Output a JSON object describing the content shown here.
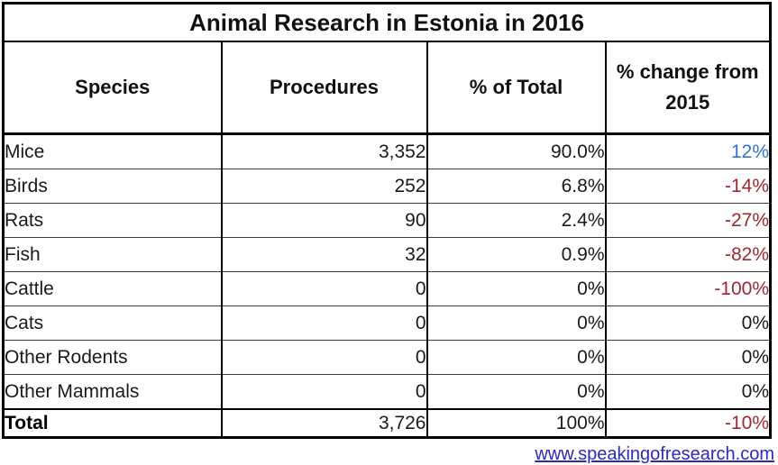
{
  "title": "Animal Research in Estonia in 2016",
  "table": {
    "columns": [
      "Species",
      "Procedures",
      "% of Total",
      "% change from 2015"
    ],
    "rows": [
      {
        "species": "Mice",
        "procedures": "3,352",
        "pct_total": "90.0%",
        "change": "12%",
        "change_color": "#2d73dc"
      },
      {
        "species": "Birds",
        "procedures": "252",
        "pct_total": "6.8%",
        "change": "-14%",
        "change_color": "#a4262e"
      },
      {
        "species": "Rats",
        "procedures": "90",
        "pct_total": "2.4%",
        "change": "-27%",
        "change_color": "#a4262e"
      },
      {
        "species": "Fish",
        "procedures": "32",
        "pct_total": "0.9%",
        "change": "-82%",
        "change_color": "#a4262e"
      },
      {
        "species": "Cattle",
        "procedures": "0",
        "pct_total": "0%",
        "change": "-100%",
        "change_color": "#a4262e"
      },
      {
        "species": "Cats",
        "procedures": "0",
        "pct_total": "0%",
        "change": "0%",
        "change_color": "#1a1a1a"
      },
      {
        "species": "Other Rodents",
        "procedures": "0",
        "pct_total": "0%",
        "change": "0%",
        "change_color": "#1a1a1a"
      },
      {
        "species": "Other Mammals",
        "procedures": "0",
        "pct_total": "0%",
        "change": "0%",
        "change_color": "#1a1a1a"
      }
    ],
    "total": {
      "species": "Total",
      "procedures": "3,726",
      "pct_total": "100%",
      "change": "-10%",
      "change_color": "#a4262e"
    }
  },
  "footer": {
    "link": "www.speakingofresearch.com"
  },
  "colors": {
    "positive_change": "#2d73dc",
    "negative_change": "#a4262e",
    "link": "#2828ce",
    "border": "#000000"
  },
  "chart_data": {
    "type": "table",
    "title": "Animal Research in Estonia in 2016",
    "columns": [
      "Species",
      "Procedures",
      "% of Total",
      "% change from 2015"
    ],
    "rows": [
      [
        "Mice",
        3352,
        "90.0%",
        "12%"
      ],
      [
        "Birds",
        252,
        "6.8%",
        "-14%"
      ],
      [
        "Rats",
        90,
        "2.4%",
        "-27%"
      ],
      [
        "Fish",
        32,
        "0.9%",
        "-82%"
      ],
      [
        "Cattle",
        0,
        "0%",
        "-100%"
      ],
      [
        "Cats",
        0,
        "0%",
        "0%"
      ],
      [
        "Other Rodents",
        0,
        "0%",
        "0%"
      ],
      [
        "Other Mammals",
        0,
        "0%",
        "0%"
      ],
      [
        "Total",
        3726,
        "100%",
        "-10%"
      ]
    ],
    "source": "www.speakingofresearch.com"
  }
}
